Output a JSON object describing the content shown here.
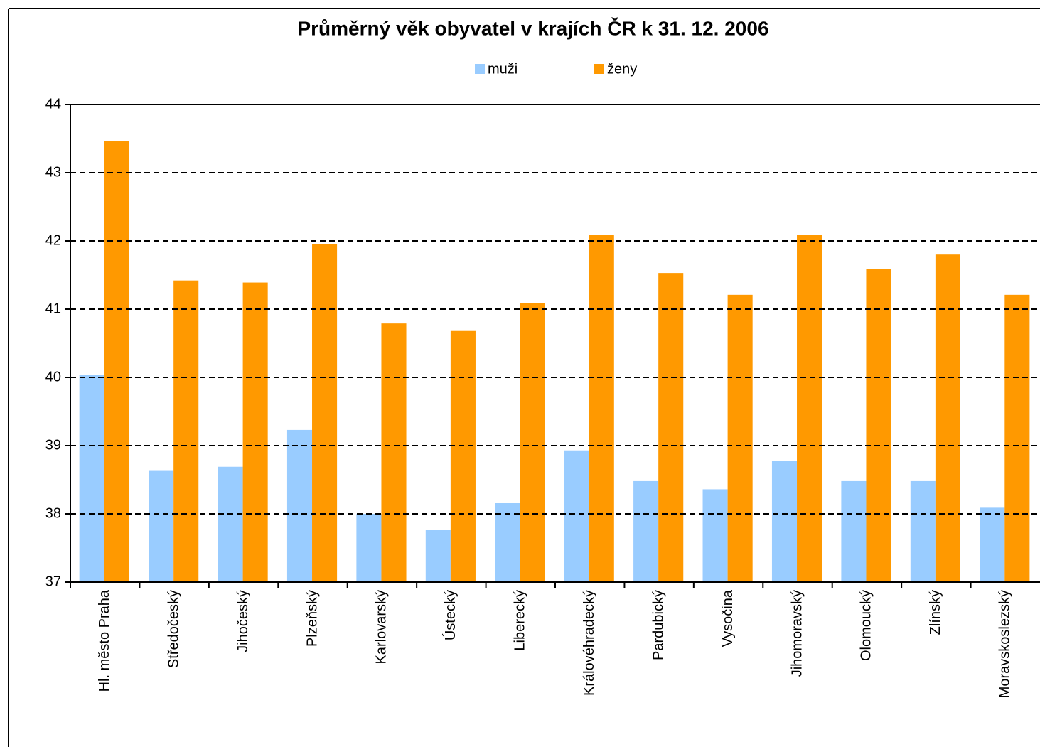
{
  "chart_data": {
    "type": "bar",
    "title": "Průměrný věk obyvatel v krajích ČR k 31. 12. 2006",
    "categories": [
      "Hl. město Praha",
      "Středočeský",
      "Jihočeský",
      "Plzeňský",
      "Karlovarský",
      "Ústecký",
      "Liberecký",
      "Královéhradecký",
      "Pardubický",
      "Vysočina",
      "Jihomoravský",
      "Olomoucký",
      "Zlínský",
      "Moravskoslezský"
    ],
    "series": [
      {
        "name": "muži",
        "color": "#99ccff",
        "values": [
          40.04,
          38.64,
          38.69,
          39.23,
          38.0,
          37.77,
          38.16,
          38.93,
          38.48,
          38.36,
          38.78,
          38.48,
          38.48,
          38.09
        ]
      },
      {
        "name": "ženy",
        "color": "#ff9900",
        "values": [
          43.46,
          41.42,
          41.39,
          41.95,
          40.79,
          40.68,
          41.09,
          42.09,
          41.53,
          41.21,
          42.09,
          41.59,
          41.8,
          41.21
        ]
      }
    ],
    "ylim": [
      37,
      44
    ],
    "yticks": [
      37,
      38,
      39,
      40,
      41,
      42,
      43,
      44
    ],
    "grid": true,
    "legend": "top"
  }
}
